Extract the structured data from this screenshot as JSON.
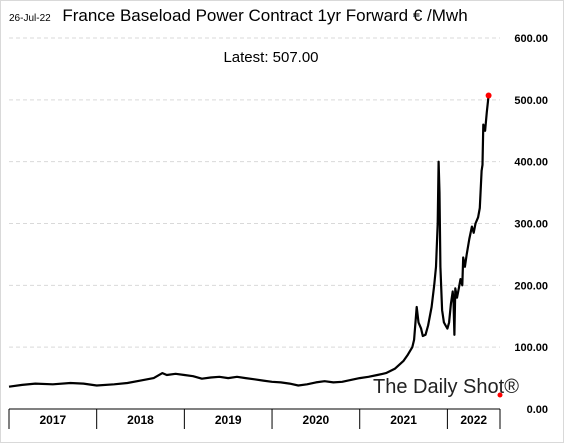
{
  "chart_data": {
    "type": "line",
    "date_stamp": "26-Jul-22",
    "title": "France Baseload Power Contract 1yr Forward € /Mwh",
    "annotation": "Latest:  507.00",
    "watermark": "The Daily Shot®",
    "y_axis": {
      "range": [
        0,
        600
      ],
      "ticks": [
        "0.00",
        "100.00",
        "200.00",
        "300.00",
        "400.00",
        "500.00",
        "600.00"
      ],
      "position": "right",
      "grid": true
    },
    "x_axis": {
      "range": [
        2017.0,
        2022.6
      ],
      "year_labels": [
        "2017",
        "2018",
        "2019",
        "2020",
        "2021",
        "2022"
      ]
    },
    "series": [
      {
        "color": "#000000",
        "points": [
          [
            2017.0,
            36
          ],
          [
            2017.15,
            39
          ],
          [
            2017.3,
            41
          ],
          [
            2017.5,
            40
          ],
          [
            2017.7,
            42
          ],
          [
            2017.85,
            41
          ],
          [
            2018.0,
            38
          ],
          [
            2018.2,
            40
          ],
          [
            2018.35,
            42
          ],
          [
            2018.5,
            46
          ],
          [
            2018.65,
            50
          ],
          [
            2018.75,
            58
          ],
          [
            2018.8,
            55
          ],
          [
            2018.9,
            57
          ],
          [
            2019.0,
            55
          ],
          [
            2019.1,
            53
          ],
          [
            2019.2,
            49
          ],
          [
            2019.3,
            51
          ],
          [
            2019.4,
            52
          ],
          [
            2019.5,
            50
          ],
          [
            2019.6,
            52
          ],
          [
            2019.7,
            50
          ],
          [
            2019.8,
            48
          ],
          [
            2019.9,
            46
          ],
          [
            2020.0,
            44
          ],
          [
            2020.1,
            43
          ],
          [
            2020.2,
            41
          ],
          [
            2020.3,
            38
          ],
          [
            2020.4,
            40
          ],
          [
            2020.5,
            43
          ],
          [
            2020.6,
            45
          ],
          [
            2020.7,
            43
          ],
          [
            2020.8,
            44
          ],
          [
            2020.9,
            47
          ],
          [
            2021.0,
            50
          ],
          [
            2021.1,
            52
          ],
          [
            2021.2,
            55
          ],
          [
            2021.3,
            58
          ],
          [
            2021.4,
            65
          ],
          [
            2021.5,
            78
          ],
          [
            2021.55,
            88
          ],
          [
            2021.6,
            100
          ],
          [
            2021.62,
            112
          ],
          [
            2021.65,
            165
          ],
          [
            2021.67,
            140
          ],
          [
            2021.7,
            130
          ],
          [
            2021.72,
            118
          ],
          [
            2021.75,
            120
          ],
          [
            2021.78,
            135
          ],
          [
            2021.82,
            165
          ],
          [
            2021.85,
            200
          ],
          [
            2021.87,
            230
          ],
          [
            2021.89,
            300
          ],
          [
            2021.9,
            400
          ],
          [
            2021.91,
            350
          ],
          [
            2021.92,
            230
          ],
          [
            2021.94,
            160
          ],
          [
            2021.96,
            140
          ],
          [
            2021.98,
            135
          ],
          [
            2022.0,
            130
          ],
          [
            2022.02,
            140
          ],
          [
            2022.04,
            170
          ],
          [
            2022.06,
            190
          ],
          [
            2022.07,
            175
          ],
          [
            2022.08,
            120
          ],
          [
            2022.09,
            195
          ],
          [
            2022.11,
            180
          ],
          [
            2022.13,
            195
          ],
          [
            2022.15,
            210
          ],
          [
            2022.17,
            200
          ],
          [
            2022.18,
            245
          ],
          [
            2022.2,
            230
          ],
          [
            2022.22,
            250
          ],
          [
            2022.25,
            275
          ],
          [
            2022.28,
            295
          ],
          [
            2022.3,
            285
          ],
          [
            2022.32,
            300
          ],
          [
            2022.35,
            310
          ],
          [
            2022.37,
            325
          ],
          [
            2022.39,
            385
          ],
          [
            2022.4,
            395
          ],
          [
            2022.41,
            460
          ],
          [
            2022.43,
            450
          ],
          [
            2022.45,
            480
          ],
          [
            2022.47,
            507
          ]
        ]
      }
    ],
    "latest_point": {
      "x": 2022.47,
      "y": 507
    },
    "zero_marker": {
      "x": 2022.6,
      "y": 0
    },
    "marker_color": "#ff0000"
  }
}
